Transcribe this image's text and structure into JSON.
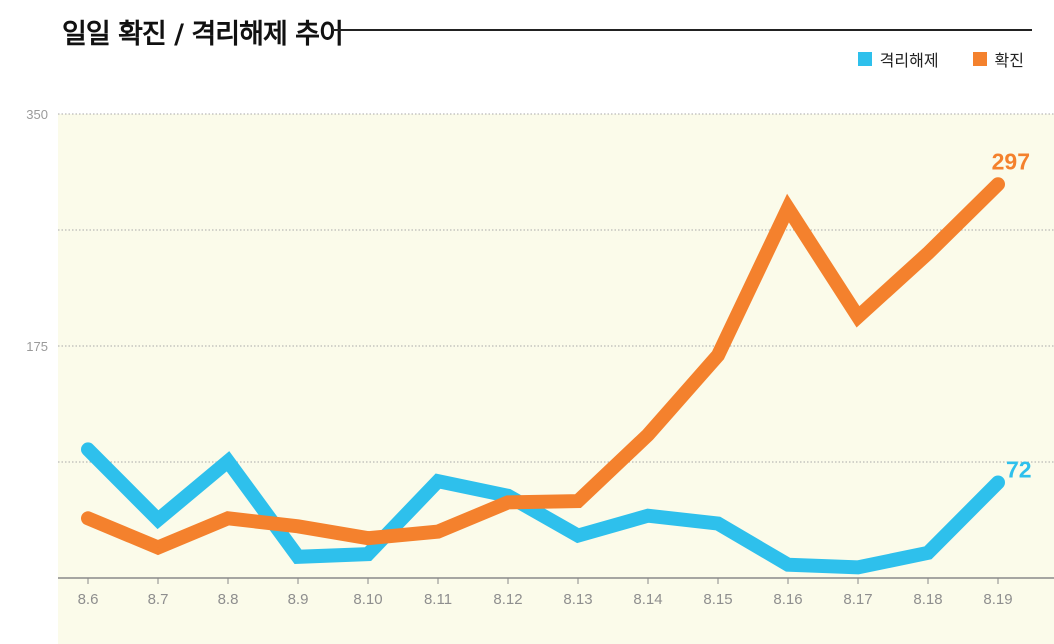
{
  "title": "일일 확진 / 격리해제 추이",
  "legend": [
    {
      "label": "격리해제",
      "color": "#2ec0ec"
    },
    {
      "label": "확진",
      "color": "#f4812d"
    }
  ],
  "chart_data": {
    "type": "line",
    "title": "일일 확진 / 격리해제 추이",
    "categories": [
      "8.6",
      "8.7",
      "8.8",
      "8.9",
      "8.10",
      "8.11",
      "8.12",
      "8.13",
      "8.14",
      "8.15",
      "8.16",
      "8.17",
      "8.18",
      "8.19"
    ],
    "y_ticks": [
      "350",
      "175"
    ],
    "ylim": [
      0,
      350
    ],
    "grid": true,
    "legend_position": "top-right",
    "background_color": "#fbfbea",
    "series": [
      {
        "name": "격리해제",
        "color": "#2ec0ec",
        "values": [
          97,
          44,
          88,
          16,
          18,
          73,
          62,
          32,
          47,
          41,
          10,
          8,
          19,
          72
        ],
        "end_label": "72"
      },
      {
        "name": "확진",
        "color": "#f4812d",
        "values": [
          45,
          23,
          45,
          39,
          30,
          35,
          57,
          58,
          108,
          168,
          279,
          197,
          245,
          297
        ],
        "end_label": "297"
      }
    ]
  }
}
